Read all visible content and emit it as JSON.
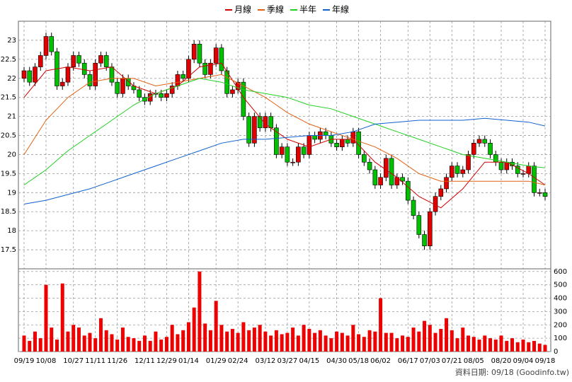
{
  "chart_data": {
    "type": "candlestick",
    "categories": [
      "09/19",
      null,
      null,
      null,
      "10/08",
      null,
      null,
      null,
      null,
      "10/27",
      null,
      null,
      null,
      "11/11",
      null,
      null,
      null,
      "11/26",
      null,
      null,
      null,
      null,
      "12/11",
      null,
      null,
      null,
      "12/29",
      null,
      null,
      null,
      "01/14",
      null,
      null,
      null,
      null,
      "01/29",
      null,
      null,
      null,
      "02/24",
      null,
      null,
      null,
      null,
      "03/12",
      null,
      null,
      null,
      "03/27",
      null,
      null,
      null,
      "04/15",
      null,
      null,
      null,
      null,
      "04/30",
      null,
      null,
      null,
      "05/18",
      null,
      null,
      null,
      "06/02",
      null,
      null,
      null,
      null,
      "06/17",
      null,
      null,
      null,
      "07/03",
      null,
      null,
      null,
      "07/21",
      null,
      null,
      null,
      "08/05",
      null,
      null,
      null,
      null,
      "08/20",
      null,
      null,
      null,
      "09/04",
      null,
      null,
      null,
      "09/18"
    ],
    "open": [
      22.0,
      22.2,
      21.9,
      22.3,
      22.6,
      23.1,
      22.7,
      21.8,
      21.9,
      22.3,
      22.6,
      22.4,
      22.1,
      21.8,
      22.4,
      22.6,
      22.3,
      21.9,
      21.6,
      22.0,
      21.8,
      21.7,
      21.5,
      21.4,
      21.6,
      21.6,
      21.5,
      21.6,
      21.8,
      22.1,
      22.0,
      22.5,
      22.9,
      22.4,
      22.1,
      22.4,
      22.8,
      22.2,
      21.6,
      21.7,
      21.9,
      21.0,
      20.3,
      21.0,
      20.7,
      21.0,
      20.7,
      20.0,
      20.2,
      19.8,
      19.8,
      20.2,
      20.0,
      20.5,
      20.4,
      20.6,
      20.5,
      20.3,
      20.2,
      20.4,
      20.3,
      20.6,
      20.0,
      19.8,
      19.6,
      19.2,
      19.4,
      19.9,
      19.2,
      19.4,
      19.3,
      18.8,
      18.4,
      17.9,
      17.6,
      18.5,
      18.9,
      19.1,
      19.4,
      19.7,
      19.5,
      19.6,
      20.0,
      20.3,
      20.4,
      20.3,
      20.0,
      19.8,
      19.6,
      19.8,
      19.7,
      19.5,
      19.5,
      19.7,
      19.0,
      19.0
    ],
    "high": [
      22.3,
      22.3,
      22.4,
      22.7,
      23.2,
      23.2,
      22.8,
      22.0,
      22.4,
      22.7,
      22.7,
      22.5,
      22.2,
      22.5,
      22.7,
      22.7,
      22.4,
      22.0,
      22.1,
      22.1,
      21.9,
      21.8,
      21.6,
      21.7,
      21.7,
      21.7,
      21.7,
      21.9,
      22.2,
      22.2,
      22.6,
      23.0,
      23.0,
      22.5,
      22.5,
      22.9,
      22.9,
      22.3,
      21.8,
      22.0,
      22.0,
      21.1,
      21.1,
      21.1,
      21.1,
      21.1,
      20.8,
      20.3,
      20.3,
      19.9,
      20.3,
      20.3,
      20.6,
      20.6,
      20.7,
      20.7,
      20.6,
      20.4,
      20.5,
      20.5,
      20.7,
      20.7,
      20.1,
      19.9,
      19.7,
      19.5,
      20.0,
      20.0,
      19.5,
      19.5,
      19.4,
      18.9,
      18.5,
      18.0,
      18.6,
      19.0,
      19.2,
      19.5,
      19.8,
      19.8,
      19.7,
      20.1,
      20.4,
      20.5,
      20.5,
      20.4,
      20.1,
      19.9,
      19.9,
      19.9,
      19.8,
      19.6,
      19.8,
      19.8,
      19.1,
      19.1
    ],
    "low": [
      21.9,
      21.8,
      21.8,
      22.2,
      22.5,
      22.6,
      21.7,
      21.7,
      21.8,
      22.2,
      22.3,
      22.0,
      21.7,
      21.7,
      22.3,
      22.2,
      21.8,
      21.5,
      21.5,
      21.7,
      21.6,
      21.4,
      21.3,
      21.3,
      21.5,
      21.4,
      21.4,
      21.5,
      21.7,
      21.9,
      21.9,
      22.4,
      22.3,
      22.0,
      22.0,
      22.3,
      22.1,
      21.5,
      21.5,
      21.6,
      20.9,
      20.2,
      20.2,
      20.6,
      20.6,
      20.6,
      19.9,
      19.9,
      19.7,
      19.7,
      19.7,
      19.9,
      19.9,
      20.3,
      20.3,
      20.4,
      20.2,
      20.1,
      20.1,
      20.2,
      20.2,
      19.9,
      19.7,
      19.5,
      19.1,
      19.1,
      19.3,
      19.1,
      19.1,
      19.2,
      18.7,
      18.3,
      17.8,
      17.5,
      17.5,
      18.4,
      18.8,
      19.0,
      19.3,
      19.4,
      19.4,
      19.5,
      19.9,
      20.2,
      20.2,
      19.9,
      19.7,
      19.5,
      19.5,
      19.6,
      19.4,
      19.4,
      19.4,
      18.9,
      18.9,
      18.8
    ],
    "close": [
      22.2,
      21.9,
      22.3,
      22.6,
      23.1,
      22.7,
      21.8,
      21.9,
      22.3,
      22.6,
      22.4,
      22.1,
      21.8,
      22.4,
      22.6,
      22.3,
      21.9,
      21.6,
      22.0,
      21.8,
      21.7,
      21.5,
      21.4,
      21.6,
      21.6,
      21.5,
      21.6,
      21.8,
      22.1,
      22.0,
      22.5,
      22.9,
      22.4,
      22.1,
      22.4,
      22.8,
      22.2,
      21.6,
      21.7,
      21.9,
      21.0,
      20.3,
      21.0,
      20.7,
      21.0,
      20.7,
      20.0,
      20.2,
      19.8,
      19.8,
      20.2,
      20.0,
      20.5,
      20.4,
      20.6,
      20.5,
      20.3,
      20.2,
      20.4,
      20.3,
      20.6,
      20.0,
      19.8,
      19.6,
      19.2,
      19.4,
      19.9,
      19.2,
      19.4,
      19.3,
      18.8,
      18.4,
      17.9,
      17.6,
      18.5,
      18.9,
      19.1,
      19.4,
      19.7,
      19.5,
      19.6,
      20.0,
      20.3,
      20.4,
      20.3,
      20.0,
      19.8,
      19.6,
      19.8,
      19.7,
      19.5,
      19.5,
      19.7,
      19.0,
      19.0,
      18.9
    ],
    "up_color": "#e00000",
    "down_color": "#00c000",
    "series": [
      {
        "name": "月線",
        "color": "#d00000",
        "x": [
          0,
          4,
          8,
          12,
          16,
          20,
          24,
          28,
          32,
          36,
          40,
          44,
          48,
          52,
          56,
          60,
          64,
          68,
          72,
          76,
          80,
          84,
          88,
          92,
          95
        ],
        "values": [
          21.5,
          22.2,
          22.3,
          22.2,
          22.3,
          21.8,
          21.6,
          21.8,
          22.3,
          22.4,
          21.5,
          20.8,
          20.4,
          20.2,
          20.4,
          20.4,
          19.8,
          19.4,
          18.9,
          18.6,
          19.1,
          19.8,
          19.8,
          19.5,
          19.2
        ]
      },
      {
        "name": "季線",
        "color": "#e06010",
        "x": [
          0,
          4,
          8,
          12,
          16,
          20,
          24,
          28,
          32,
          36,
          40,
          44,
          48,
          52,
          56,
          60,
          64,
          68,
          72,
          76,
          80,
          84,
          88,
          92,
          95
        ],
        "values": [
          20.0,
          20.9,
          21.5,
          21.9,
          22.0,
          22.0,
          21.8,
          21.9,
          22.0,
          22.1,
          21.8,
          21.5,
          21.1,
          20.8,
          20.6,
          20.4,
          20.2,
          19.9,
          19.5,
          19.3,
          19.3,
          19.3,
          19.3,
          19.3,
          19.2
        ]
      },
      {
        "name": "半年",
        "color": "#20d020",
        "x": [
          0,
          4,
          8,
          12,
          16,
          20,
          24,
          28,
          32,
          36,
          40,
          44,
          48,
          52,
          56,
          60,
          64,
          68,
          72,
          76,
          80,
          84,
          88,
          92,
          95
        ],
        "values": [
          19.2,
          19.6,
          20.1,
          20.5,
          20.9,
          21.3,
          21.6,
          21.8,
          22.0,
          21.9,
          21.7,
          21.6,
          21.5,
          21.3,
          21.2,
          21.0,
          20.8,
          20.6,
          20.4,
          20.2,
          20.0,
          19.9,
          19.8,
          19.7,
          19.65
        ]
      },
      {
        "name": "年線",
        "color": "#1060d0",
        "x": [
          0,
          4,
          8,
          12,
          16,
          20,
          24,
          28,
          32,
          36,
          40,
          44,
          48,
          52,
          56,
          60,
          64,
          68,
          72,
          76,
          80,
          84,
          88,
          92,
          95
        ],
        "values": [
          18.7,
          18.8,
          18.95,
          19.1,
          19.3,
          19.5,
          19.7,
          19.9,
          20.1,
          20.3,
          20.4,
          20.4,
          20.45,
          20.5,
          20.5,
          20.6,
          20.8,
          20.85,
          20.9,
          20.9,
          20.9,
          20.95,
          20.9,
          20.85,
          20.75
        ]
      }
    ],
    "ylim": [
      17,
      23.5
    ],
    "yticks": [
      17.5,
      18,
      18.5,
      19,
      19.5,
      20,
      20.5,
      21,
      21.5,
      22,
      22.5,
      23
    ],
    "grid": true,
    "volume": {
      "color": "#ee0000",
      "ylim": [
        0,
        620
      ],
      "yticks": [
        0,
        100,
        200,
        300,
        400,
        500,
        600
      ],
      "values": [
        120,
        80,
        150,
        100,
        500,
        180,
        90,
        510,
        150,
        200,
        180,
        120,
        140,
        100,
        250,
        160,
        130,
        90,
        180,
        110,
        100,
        80,
        120,
        80,
        150,
        90,
        110,
        200,
        130,
        160,
        220,
        330,
        600,
        210,
        160,
        380,
        200,
        150,
        170,
        140,
        220,
        160,
        180,
        200,
        150,
        120,
        160,
        130,
        140,
        180,
        120,
        200,
        170,
        140,
        160,
        120,
        100,
        150,
        140,
        120,
        200,
        130,
        110,
        160,
        150,
        400,
        140,
        140,
        100,
        120,
        110,
        180,
        150,
        230,
        200,
        140,
        170,
        250,
        160,
        100,
        180,
        120,
        110,
        90,
        120,
        100,
        90,
        120,
        80,
        100,
        70,
        90,
        70,
        80,
        60,
        50
      ]
    },
    "note": "資料日期: 09/18 (Goodinfo.tw)"
  }
}
